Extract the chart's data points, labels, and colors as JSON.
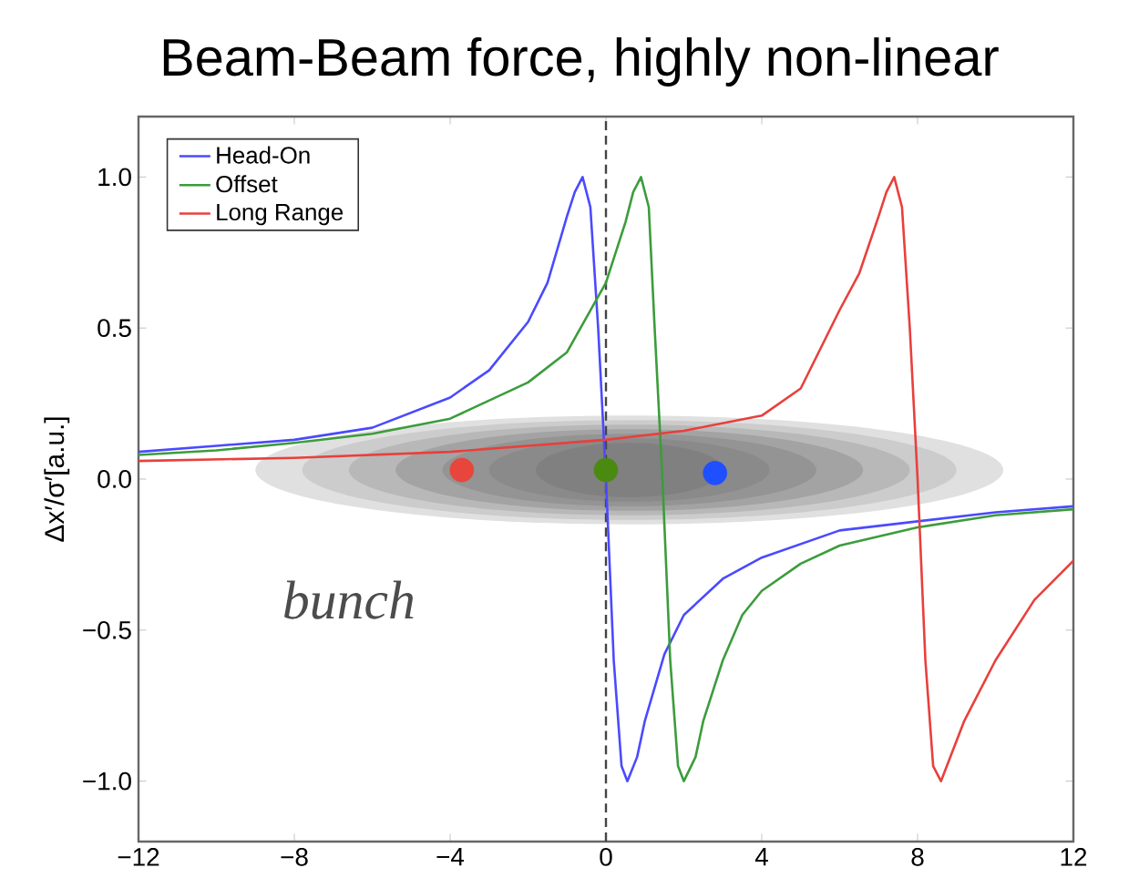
{
  "chart_data": {
    "type": "line",
    "title": "Beam-Beam force, highly non-linear",
    "ylabel": "Δx′/σ′[a.u.]",
    "xlim": [
      -12,
      12
    ],
    "ylim": [
      -1.2,
      1.2
    ],
    "xticks": [
      {
        "value": -12,
        "label": "−12"
      },
      {
        "value": -8,
        "label": "−8"
      },
      {
        "value": -4,
        "label": "−4"
      },
      0,
      4,
      8,
      12
    ],
    "yticks": [
      {
        "value": -1.0,
        "label": "−1.0"
      },
      {
        "value": -0.5,
        "label": "−0.5"
      },
      {
        "value": 0,
        "label": "0.0"
      },
      {
        "value": 0.5,
        "label": "0.5"
      },
      {
        "value": 1.0,
        "label": "1.0"
      }
    ],
    "grid": false,
    "legend": "top left",
    "line_style": "solid",
    "annotations": [
      "bunch"
    ],
    "ref_lines": [
      {
        "axis": "x",
        "value": 0,
        "color": "#444444",
        "line_style": "dashed"
      }
    ],
    "series": [
      {
        "name": "Head-On",
        "color": "#4a4aff",
        "x": [
          -12,
          -10,
          -8,
          -6,
          -4,
          -3,
          -2,
          -1.5,
          -1,
          -0.8,
          -0.6,
          -0.4,
          -0.2,
          0,
          0.2,
          0.4,
          0.55,
          0.8,
          1,
          1.5,
          2,
          3,
          4,
          6,
          8,
          10,
          12
        ],
        "values": [
          0.09,
          0.11,
          0.13,
          0.17,
          0.27,
          0.36,
          0.52,
          0.65,
          0.87,
          0.95,
          1.0,
          0.9,
          0.5,
          0.0,
          -0.6,
          -0.95,
          -1.0,
          -0.92,
          -0.8,
          -0.58,
          -0.45,
          -0.33,
          -0.26,
          -0.17,
          -0.14,
          -0.11,
          -0.09
        ]
      },
      {
        "name": "Offset",
        "color": "#3c9c3c",
        "x": [
          -12,
          -10,
          -8,
          -6,
          -4,
          -2,
          -1,
          0,
          0.5,
          0.7,
          0.9,
          1.1,
          1.25,
          1.45,
          1.65,
          1.85,
          2.0,
          2.3,
          2.5,
          3,
          3.5,
          4,
          5,
          6,
          8,
          10,
          12
        ],
        "values": [
          0.08,
          0.095,
          0.12,
          0.15,
          0.2,
          0.32,
          0.42,
          0.65,
          0.85,
          0.95,
          1.0,
          0.9,
          0.5,
          0.0,
          -0.6,
          -0.95,
          -1.0,
          -0.92,
          -0.8,
          -0.6,
          -0.45,
          -0.37,
          -0.28,
          -0.22,
          -0.16,
          -0.12,
          -0.1
        ]
      },
      {
        "name": "Long Range",
        "color": "#e8403c",
        "x": [
          -12,
          -8,
          -4,
          0,
          2,
          4,
          5,
          6,
          6.5,
          7,
          7.2,
          7.4,
          7.6,
          7.8,
          8.0,
          8.2,
          8.4,
          8.6,
          8.9,
          9.2,
          10,
          11,
          12
        ],
        "values": [
          0.06,
          0.07,
          0.09,
          0.13,
          0.16,
          0.21,
          0.3,
          0.56,
          0.68,
          0.87,
          0.95,
          1.0,
          0.9,
          0.5,
          0.0,
          -0.6,
          -0.95,
          -1.0,
          -0.9,
          -0.8,
          -0.6,
          -0.4,
          -0.27
        ]
      },
      {
        "type": "scatter",
        "marker": "circle",
        "x": [
          -3.7,
          0,
          2.8
        ],
        "values": [
          0.03,
          0.03,
          0.02
        ],
        "colors": [
          "#e8453c",
          "#4a8a10",
          "#1f4fff"
        ]
      }
    ]
  }
}
